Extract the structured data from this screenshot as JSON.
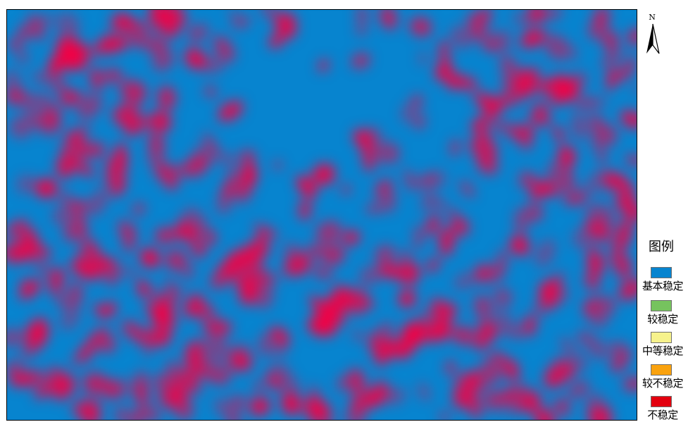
{
  "north": {
    "label": "N",
    "icon": "north-arrow-icon"
  },
  "legend": {
    "title": "图例",
    "items": [
      {
        "label": "基本稳定",
        "color": "#0784cf"
      },
      {
        "label": "较稳定",
        "color": "#76c35e"
      },
      {
        "label": "中等稳定",
        "color": "#f6f28c"
      },
      {
        "label": "较不稳定",
        "color": "#f9a20e"
      },
      {
        "label": "不稳定",
        "color": "#e3000f"
      }
    ]
  }
}
